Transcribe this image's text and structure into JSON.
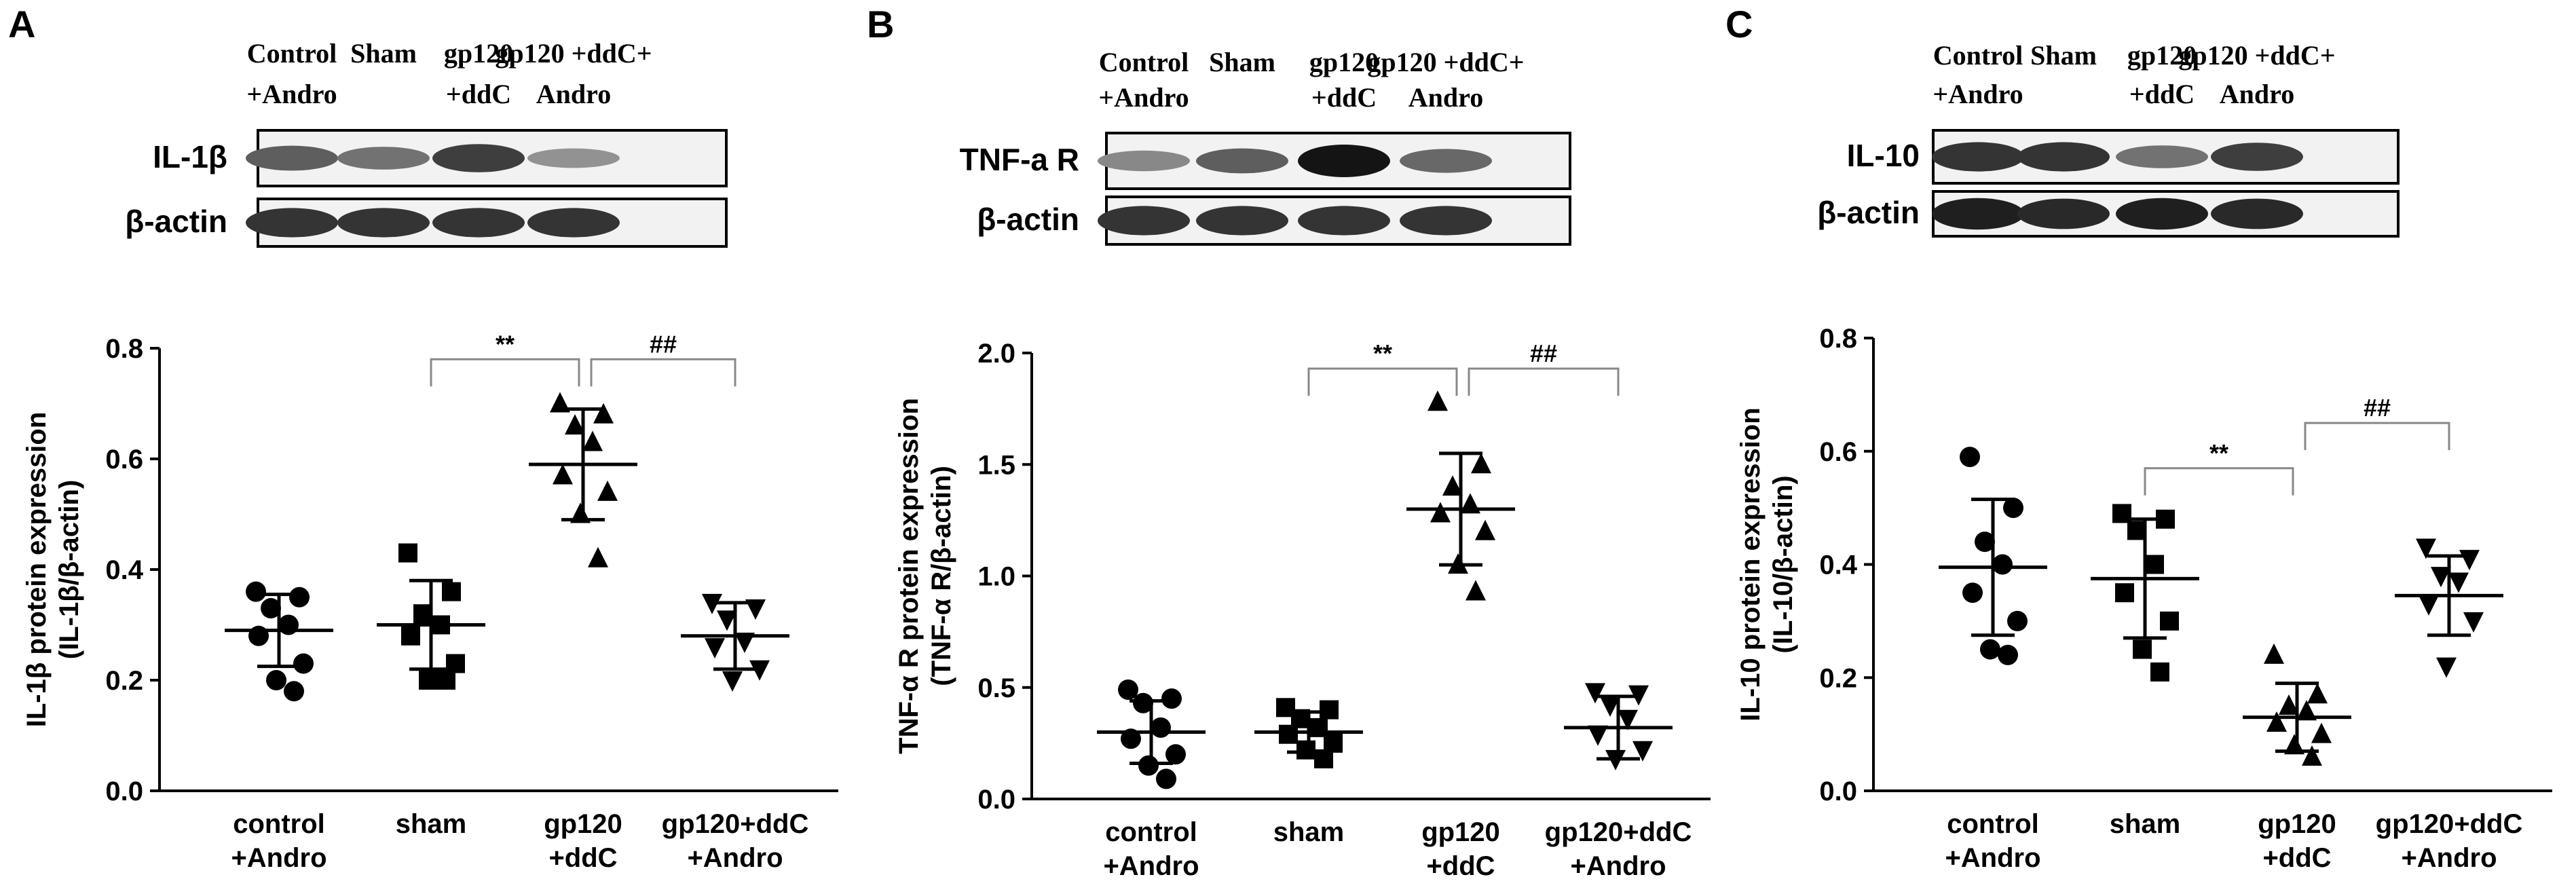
{
  "figure": {
    "panels": [
      {
        "letter": "A",
        "blot": {
          "headers": [
            {
              "line1": "Control",
              "line2": "+Andro"
            },
            {
              "line1": "Sham",
              "line2": ""
            },
            {
              "line1": "gp120",
              "line2": "+ddC"
            },
            {
              "line1": "gp120 +ddC+",
              "line2": "Andro"
            }
          ],
          "rows": [
            {
              "label": "IL-1β",
              "band_intensity": [
                0.65,
                0.55,
                0.8,
                0.4
              ]
            },
            {
              "label": "β-actin",
              "band_intensity": [
                0.85,
                0.85,
                0.85,
                0.85
              ]
            }
          ]
        }
      },
      {
        "letter": "B",
        "blot": {
          "headers": [
            {
              "line1": "Control",
              "line2": "+Andro"
            },
            {
              "line1": "Sham",
              "line2": ""
            },
            {
              "line1": "gp120",
              "line2": "+ddC"
            },
            {
              "line1": "gp120 +ddC+",
              "line2": "Andro"
            }
          ],
          "rows": [
            {
              "label": "TNF-a R",
              "band_intensity": [
                0.45,
                0.65,
                1.0,
                0.6
              ]
            },
            {
              "label": "β-actin",
              "band_intensity": [
                0.85,
                0.85,
                0.85,
                0.85
              ]
            }
          ]
        }
      },
      {
        "letter": "C",
        "blot": {
          "headers": [
            {
              "line1": "Control",
              "line2": "+Andro"
            },
            {
              "line1": "Sham",
              "line2": ""
            },
            {
              "line1": "gp120",
              "line2": "+ddC"
            },
            {
              "line1": "gp120 +ddC+",
              "line2": "Andro"
            }
          ],
          "rows": [
            {
              "label": "IL-10",
              "band_intensity": [
                0.85,
                0.85,
                0.55,
                0.8
              ]
            },
            {
              "label": "β-actin",
              "band_intensity": [
                0.95,
                0.9,
                0.95,
                0.9
              ]
            }
          ]
        }
      }
    ]
  },
  "chart_data": [
    {
      "type": "scatter",
      "panel": "A",
      "ylabel_line1": "IL-1β protein expression",
      "ylabel_line2": "(IL-1β/β-actin)",
      "ylim": [
        0,
        0.8
      ],
      "yticks": [
        "0.0",
        "0.2",
        "0.4",
        "0.6",
        "0.8"
      ],
      "categories": [
        {
          "line1": "control",
          "line2": "+Andro"
        },
        {
          "line1": "sham",
          "line2": ""
        },
        {
          "line1": "gp120",
          "line2": "+ddC"
        },
        {
          "line1": "gp120+ddC",
          "line2": "+Andro"
        }
      ],
      "groups": [
        {
          "marker": "circle",
          "mean": 0.29,
          "sd": 0.065,
          "points": [
            0.36,
            0.35,
            0.33,
            0.3,
            0.28,
            0.23,
            0.2,
            0.18
          ]
        },
        {
          "marker": "square",
          "mean": 0.3,
          "sd": 0.08,
          "points": [
            0.43,
            0.36,
            0.32,
            0.3,
            0.28,
            0.23,
            0.2,
            0.2
          ]
        },
        {
          "marker": "triangle-up",
          "mean": 0.59,
          "sd": 0.1,
          "points": [
            0.7,
            0.68,
            0.66,
            0.63,
            0.57,
            0.54,
            0.5,
            0.42
          ]
        },
        {
          "marker": "triangle-down",
          "mean": 0.28,
          "sd": 0.06,
          "points": [
            0.34,
            0.33,
            0.31,
            0.27,
            0.26,
            0.22,
            0.2
          ]
        }
      ],
      "brackets": [
        {
          "from": 1,
          "to": 2,
          "label": "**",
          "y": 0.78
        },
        {
          "from": 2,
          "to": 3,
          "label": "##",
          "y": 0.78
        }
      ]
    },
    {
      "type": "scatter",
      "panel": "B",
      "ylabel_line1": "TNF-α R protein expression",
      "ylabel_line2": "(TNF-α R/β-actin)",
      "ylim": [
        0,
        2.0
      ],
      "yticks": [
        "0.0",
        "0.5",
        "1.0",
        "1.5",
        "2.0"
      ],
      "categories": [
        {
          "line1": "control",
          "line2": "+Andro"
        },
        {
          "line1": "sham",
          "line2": ""
        },
        {
          "line1": "gp120",
          "line2": "+ddC"
        },
        {
          "line1": "gp120+ddC",
          "line2": "+Andro"
        }
      ],
      "groups": [
        {
          "marker": "circle",
          "mean": 0.3,
          "sd": 0.14,
          "points": [
            0.49,
            0.45,
            0.43,
            0.32,
            0.27,
            0.2,
            0.15,
            0.09
          ]
        },
        {
          "marker": "square",
          "mean": 0.3,
          "sd": 0.09,
          "points": [
            0.41,
            0.4,
            0.36,
            0.32,
            0.29,
            0.25,
            0.22,
            0.18
          ]
        },
        {
          "marker": "triangle-up",
          "mean": 1.3,
          "sd": 0.25,
          "points": [
            1.78,
            1.5,
            1.4,
            1.32,
            1.28,
            1.2,
            1.05,
            0.93
          ]
        },
        {
          "marker": "triangle-down",
          "mean": 0.32,
          "sd": 0.14,
          "points": [
            0.48,
            0.47,
            0.42,
            0.36,
            0.29,
            0.22,
            0.18
          ]
        }
      ],
      "brackets": [
        {
          "from": 1,
          "to": 2,
          "label": "**",
          "y": 1.93
        },
        {
          "from": 2,
          "to": 3,
          "label": "##",
          "y": 1.93
        }
      ]
    },
    {
      "type": "scatter",
      "panel": "C",
      "ylabel_line1": "IL-10 protein expression",
      "ylabel_line2": "(IL-10/β-actin)",
      "ylim": [
        0,
        0.8
      ],
      "yticks": [
        "0.0",
        "0.2",
        "0.4",
        "0.6",
        "0.8"
      ],
      "categories": [
        {
          "line1": "control",
          "line2": "+Andro"
        },
        {
          "line1": "sham",
          "line2": ""
        },
        {
          "line1": "gp120",
          "line2": "+ddC"
        },
        {
          "line1": "gp120+ddC",
          "line2": "+Andro"
        }
      ],
      "groups": [
        {
          "marker": "circle",
          "mean": 0.395,
          "sd": 0.12,
          "points": [
            0.59,
            0.5,
            0.44,
            0.4,
            0.35,
            0.3,
            0.25,
            0.24
          ]
        },
        {
          "marker": "square",
          "mean": 0.375,
          "sd": 0.105,
          "points": [
            0.49,
            0.48,
            0.46,
            0.4,
            0.35,
            0.3,
            0.25,
            0.21
          ]
        },
        {
          "marker": "triangle-up",
          "mean": 0.13,
          "sd": 0.06,
          "points": [
            0.24,
            0.17,
            0.15,
            0.14,
            0.12,
            0.1,
            0.08,
            0.06
          ]
        },
        {
          "marker": "triangle-down",
          "mean": 0.345,
          "sd": 0.07,
          "points": [
            0.43,
            0.41,
            0.38,
            0.37,
            0.33,
            0.3,
            0.22
          ]
        }
      ],
      "brackets": [
        {
          "from": 1,
          "to": 2,
          "label": "**",
          "y": 0.57
        },
        {
          "from": 2,
          "to": 3,
          "label": "##",
          "y": 0.65
        }
      ]
    }
  ]
}
